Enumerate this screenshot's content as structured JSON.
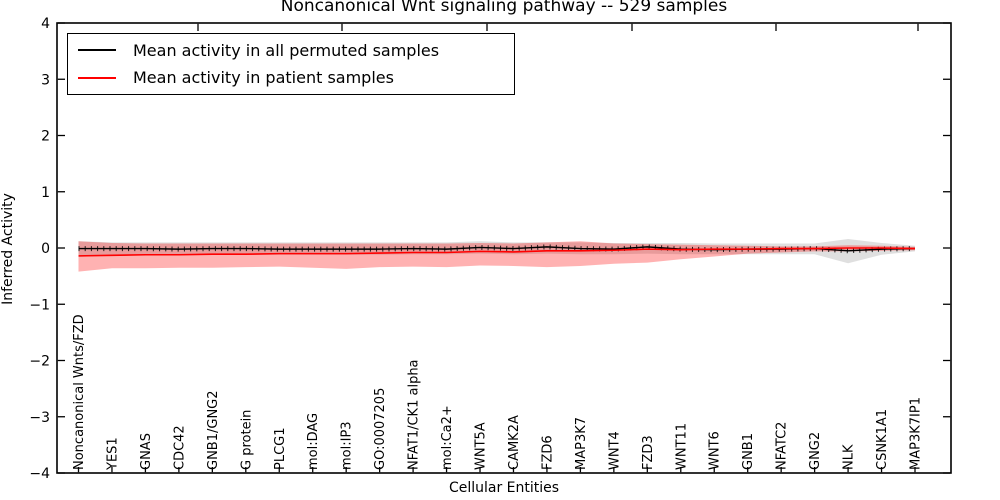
{
  "figure": {
    "title": "Noncanonical Wnt signaling pathway -- 529 samples",
    "background": "#ffffff",
    "frame_color": "#000000"
  },
  "chart_data": {
    "type": "line",
    "title": "Noncanonical Wnt signaling pathway -- 529 samples",
    "xlabel": "Cellular Entities",
    "ylabel": "Inferred Activity",
    "ylim": [
      -4,
      4
    ],
    "yticks": [
      4,
      3,
      2,
      1,
      0,
      -1,
      -2,
      -3,
      -4
    ],
    "grid": false,
    "legend_position": "upper left",
    "categories": [
      "Noncanonical Wnts/FZD",
      "YES1",
      "GNAS",
      "CDC42",
      "GNB1/GNG2",
      "G protein",
      "PLCG1",
      "mol:DAG",
      "mol:IP3",
      "GO:0007205",
      "NFAT1/CK1 alpha",
      "mol:Ca2+",
      "WNT5A",
      "CAMK2A",
      "FZD6",
      "MAP3K7",
      "WNT4",
      "FZD3",
      "WNT11",
      "WNT6",
      "GNB1",
      "NFATC2",
      "GNG2",
      "NLK",
      "CSNK1A1",
      "MAP3K7IP1"
    ],
    "series": [
      {
        "name": "Mean activity in all permuted samples",
        "color": "#000000",
        "band_color": "#c0c0c0",
        "band_opacity": 0.5,
        "values": [
          -0.01,
          -0.01,
          -0.01,
          -0.02,
          -0.01,
          -0.01,
          -0.02,
          -0.02,
          -0.02,
          -0.02,
          -0.01,
          -0.02,
          0.01,
          -0.01,
          0.02,
          -0.01,
          -0.02,
          0.02,
          -0.02,
          -0.03,
          -0.02,
          -0.02,
          -0.01,
          -0.05,
          -0.02,
          -0.01
        ],
        "band_upper": [
          0.12,
          0.1,
          0.1,
          0.1,
          0.1,
          0.1,
          0.1,
          0.1,
          0.1,
          0.1,
          0.1,
          0.1,
          0.12,
          0.1,
          0.1,
          0.1,
          0.09,
          0.09,
          0.09,
          0.08,
          0.08,
          0.08,
          0.08,
          0.16,
          0.09,
          0.04
        ],
        "band_lower": [
          -0.16,
          -0.13,
          -0.13,
          -0.13,
          -0.12,
          -0.12,
          -0.12,
          -0.12,
          -0.12,
          -0.12,
          -0.11,
          -0.11,
          -0.1,
          -0.11,
          -0.1,
          -0.11,
          -0.11,
          -0.1,
          -0.11,
          -0.11,
          -0.11,
          -0.11,
          -0.11,
          -0.27,
          -0.12,
          -0.06
        ]
      },
      {
        "name": "Mean activity in patient samples",
        "color": "#ff0000",
        "band_color": "#ff0000",
        "band_opacity": 0.3,
        "values": [
          -0.14,
          -0.13,
          -0.12,
          -0.12,
          -0.11,
          -0.11,
          -0.1,
          -0.1,
          -0.1,
          -0.09,
          -0.08,
          -0.08,
          -0.06,
          -0.07,
          -0.05,
          -0.05,
          -0.04,
          -0.02,
          -0.03,
          -0.02,
          -0.02,
          -0.01,
          -0.01,
          0.0,
          0.0,
          -0.01
        ],
        "band_upper": [
          0.12,
          0.09,
          0.08,
          0.08,
          0.08,
          0.08,
          0.08,
          0.08,
          0.08,
          0.08,
          0.08,
          0.08,
          0.09,
          0.08,
          0.1,
          0.12,
          0.08,
          0.07,
          0.06,
          0.05,
          0.04,
          0.03,
          0.03,
          0.05,
          0.04,
          0.02
        ],
        "band_lower": [
          -0.42,
          -0.36,
          -0.36,
          -0.35,
          -0.35,
          -0.34,
          -0.33,
          -0.35,
          -0.37,
          -0.34,
          -0.33,
          -0.34,
          -0.31,
          -0.32,
          -0.34,
          -0.32,
          -0.28,
          -0.26,
          -0.2,
          -0.15,
          -0.1,
          -0.08,
          -0.06,
          -0.06,
          -0.05,
          -0.04
        ]
      }
    ]
  }
}
